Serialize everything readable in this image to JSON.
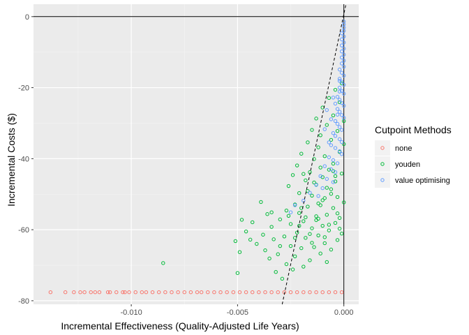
{
  "chart_data": {
    "type": "scatter",
    "xlabel": "Incremental Effectiveness (Quality-Adjusted Life Years)",
    "ylabel": "Incremental Costs ($)",
    "xlim": [
      -0.0146,
      0.0007
    ],
    "ylim": [
      -81.0,
      3.5
    ],
    "x_ticks": [
      -0.01,
      -0.005,
      0.0
    ],
    "x_tick_labels": [
      "-0.010",
      "-0.005",
      "0.000"
    ],
    "y_ticks": [
      0,
      -20,
      -40,
      -60,
      -80
    ],
    "y_tick_labels": [
      "0",
      "-20",
      "-40",
      "-60",
      "-80"
    ],
    "grid": true,
    "background": "#ebebeb",
    "reference_lines": {
      "x": 0,
      "y": 0
    },
    "threshold_line": {
      "style": "dashed",
      "points": [
        [
          -0.0029,
          -81.0
        ],
        [
          0.0001,
          3.5
        ]
      ]
    },
    "legend": {
      "title": "Cutpoint Methods",
      "placement": "right",
      "items": [
        "none",
        "youden",
        "value optimising"
      ]
    },
    "series": [
      {
        "name": "none",
        "color": "#f8766d",
        "points": [
          [
            -0.0138,
            -77.6
          ],
          [
            -0.0131,
            -77.6
          ],
          [
            -0.0127,
            -77.6
          ],
          [
            -0.0124,
            -77.6
          ],
          [
            -0.0122,
            -77.6
          ],
          [
            -0.0119,
            -77.6
          ],
          [
            -0.0117,
            -77.6
          ],
          [
            -0.0115,
            -77.6
          ],
          [
            -0.0111,
            -77.6
          ],
          [
            -0.011,
            -77.6
          ],
          [
            -0.0107,
            -77.6
          ],
          [
            -0.0104,
            -77.6
          ],
          [
            -0.0103,
            -77.6
          ],
          [
            -0.0101,
            -77.6
          ],
          [
            -0.0098,
            -77.6
          ],
          [
            -0.0095,
            -77.6
          ],
          [
            -0.0093,
            -77.6
          ],
          [
            -0.009,
            -77.6
          ],
          [
            -0.0087,
            -77.6
          ],
          [
            -0.0084,
            -77.6
          ],
          [
            -0.0081,
            -77.6
          ],
          [
            -0.0078,
            -77.6
          ],
          [
            -0.0075,
            -77.6
          ],
          [
            -0.0072,
            -77.6
          ],
          [
            -0.0069,
            -77.6
          ],
          [
            -0.0067,
            -77.6
          ],
          [
            -0.0064,
            -77.6
          ],
          [
            -0.0061,
            -77.6
          ],
          [
            -0.0058,
            -77.6
          ],
          [
            -0.0055,
            -77.6
          ],
          [
            -0.0052,
            -77.6
          ],
          [
            -0.0049,
            -77.6
          ],
          [
            -0.0046,
            -77.6
          ],
          [
            -0.0043,
            -77.6
          ],
          [
            -0.004,
            -77.6
          ],
          [
            -0.0037,
            -77.6
          ],
          [
            -0.0034,
            -77.6
          ],
          [
            -0.0031,
            -77.6
          ],
          [
            -0.0028,
            -77.6
          ],
          [
            -0.0025,
            -77.6
          ],
          [
            -0.0022,
            -77.6
          ],
          [
            -0.0019,
            -77.6
          ],
          [
            -0.0016,
            -77.6
          ],
          [
            -0.0013,
            -77.6
          ],
          [
            -0.001,
            -77.6
          ],
          [
            -0.0007,
            -77.6
          ],
          [
            -0.0004,
            -77.6
          ],
          [
            -0.0001,
            -77.6
          ]
        ]
      },
      {
        "name": "youden",
        "color": "#00ba38",
        "points": [
          [
            -0.0085,
            -69.4
          ],
          [
            -0.005,
            -72.2
          ],
          [
            -0.0049,
            -66.3
          ],
          [
            -0.0051,
            -63.2
          ],
          [
            -0.0046,
            -60.5
          ],
          [
            -0.0043,
            -57.9
          ],
          [
            -0.0041,
            -64.0
          ],
          [
            -0.0039,
            -52.2
          ],
          [
            -0.0038,
            -61.4
          ],
          [
            -0.0037,
            -65.8
          ],
          [
            -0.0036,
            -55.6
          ],
          [
            -0.0035,
            -68.1
          ],
          [
            -0.0034,
            -59.2
          ],
          [
            -0.0033,
            -62.7
          ],
          [
            -0.0032,
            -71.9
          ],
          [
            -0.0031,
            -66.9
          ],
          [
            -0.003,
            -57.1
          ],
          [
            -0.0029,
            -73.8
          ],
          [
            -0.0028,
            -61.9
          ],
          [
            -0.0027,
            -54.6
          ],
          [
            -0.0027,
            -69.7
          ],
          [
            -0.0026,
            -47.7
          ],
          [
            -0.0025,
            -64.6
          ],
          [
            -0.0025,
            -58.4
          ],
          [
            -0.0024,
            -44.6
          ],
          [
            -0.0024,
            -71.2
          ],
          [
            -0.0023,
            -52.9
          ],
          [
            -0.0023,
            -67.5
          ],
          [
            -0.0022,
            -41.9
          ],
          [
            -0.0022,
            -60.8
          ],
          [
            -0.0021,
            -55.3
          ],
          [
            -0.0021,
            -49.7
          ],
          [
            -0.002,
            -65.2
          ],
          [
            -0.002,
            -38.6
          ],
          [
            -0.0019,
            -70.4
          ],
          [
            -0.0019,
            -57.6
          ],
          [
            -0.0018,
            -46.1
          ],
          [
            -0.0018,
            -62.3
          ],
          [
            -0.0017,
            -35.4
          ],
          [
            -0.0017,
            -53.5
          ],
          [
            -0.0016,
            -68.6
          ],
          [
            -0.0016,
            -43.8
          ],
          [
            -0.0015,
            -59.6
          ],
          [
            -0.0015,
            -31.9
          ],
          [
            -0.0015,
            -50.4
          ],
          [
            -0.0014,
            -64.9
          ],
          [
            -0.0014,
            -40.1
          ],
          [
            -0.0013,
            -56.2
          ],
          [
            -0.0013,
            -28.7
          ],
          [
            -0.0013,
            -47.3
          ],
          [
            -0.0012,
            -61.6
          ],
          [
            -0.0012,
            -36.8
          ],
          [
            -0.0012,
            -52.6
          ],
          [
            -0.0011,
            -66.7
          ],
          [
            -0.0011,
            -42.5
          ],
          [
            -0.0011,
            -33.4
          ],
          [
            -0.001,
            -58.9
          ],
          [
            -0.001,
            -45.2
          ],
          [
            -0.001,
            -25.6
          ],
          [
            -0.0009,
            -63.8
          ],
          [
            -0.0009,
            -39.3
          ],
          [
            -0.0009,
            -51.1
          ],
          [
            -0.0008,
            -69.1
          ],
          [
            -0.0008,
            -30.5
          ],
          [
            -0.0008,
            -55.8
          ],
          [
            -0.0007,
            -43.1
          ],
          [
            -0.0007,
            -22.9
          ],
          [
            -0.0007,
            -60.2
          ],
          [
            -0.0006,
            -48.6
          ],
          [
            -0.0006,
            -34.7
          ],
          [
            -0.0006,
            -65.6
          ],
          [
            -0.0005,
            -27.8
          ],
          [
            -0.0005,
            -53.9
          ],
          [
            -0.0005,
            -41.4
          ],
          [
            -0.0004,
            -58.1
          ],
          [
            -0.0004,
            -20.6
          ],
          [
            -0.0004,
            -46.4
          ],
          [
            -0.0003,
            -62.9
          ],
          [
            -0.0003,
            -32.2
          ],
          [
            -0.0003,
            -50.8
          ],
          [
            -0.0002,
            -38.1
          ],
          [
            -0.0002,
            -56.7
          ],
          [
            -0.0002,
            -24.1
          ],
          [
            -0.0001,
            -44.2
          ],
          [
            -0.0001,
            -61.1
          ],
          [
            -0.0001,
            -18.8
          ],
          [
            0.0,
            -35.9
          ],
          [
            0.0,
            -52.3
          ],
          [
            0.0,
            -29.4
          ],
          [
            -0.0012,
            -56.9
          ],
          [
            -0.0008,
            -48.2
          ],
          [
            -0.0016,
            -61.2
          ],
          [
            -0.0005,
            -43.5
          ],
          [
            -0.0011,
            -53.1
          ],
          [
            -0.0007,
            -58.6
          ],
          [
            -0.0014,
            -46.7
          ],
          [
            -0.0003,
            -55.4
          ],
          [
            -0.0009,
            -62.1
          ],
          [
            -0.0006,
            -49.9
          ],
          [
            -0.0013,
            -57.3
          ],
          [
            -0.0004,
            -44.9
          ],
          [
            -0.001,
            -51.7
          ],
          [
            -0.0002,
            -59.7
          ],
          [
            -0.0017,
            -49.1
          ],
          [
            -0.0018,
            -56.5
          ],
          [
            -0.0015,
            -63.7
          ],
          [
            -0.0019,
            -44.3
          ],
          [
            -0.002,
            -53.9
          ],
          [
            -0.0021,
            -58.9
          ],
          [
            -0.0023,
            -62.3
          ],
          [
            -0.0026,
            -56.1
          ],
          [
            -0.003,
            -64.6
          ],
          [
            -0.0034,
            -55.1
          ],
          [
            -0.0044,
            -62.8
          ],
          [
            -0.0048,
            -57.2
          ]
        ]
      },
      {
        "name": "value optimising",
        "color": "#619cff",
        "points": [
          [
            0.0,
            -1.4
          ],
          [
            0.0,
            -2.2
          ],
          [
            0.0,
            -3.1
          ],
          [
            0.0,
            -4.0
          ],
          [
            -0.0001,
            -4.7
          ],
          [
            0.0,
            -5.6
          ],
          [
            -0.0001,
            -6.4
          ],
          [
            0.0,
            -7.3
          ],
          [
            -0.0001,
            -8.1
          ],
          [
            0.0,
            -9.0
          ],
          [
            -0.0001,
            -9.8
          ],
          [
            0.0,
            -10.7
          ],
          [
            -0.0001,
            -11.5
          ],
          [
            0.0,
            -12.4
          ],
          [
            -0.0001,
            -13.2
          ],
          [
            0.0,
            -14.1
          ],
          [
            -0.0002,
            -14.9
          ],
          [
            -0.0001,
            -15.8
          ],
          [
            0.0,
            -16.6
          ],
          [
            -0.0002,
            -17.5
          ],
          [
            -0.0001,
            -18.3
          ],
          [
            0.0,
            -19.2
          ],
          [
            -0.0002,
            -20.0
          ],
          [
            -0.0001,
            -20.9
          ],
          [
            0.0,
            -21.7
          ],
          [
            -0.0003,
            -22.6
          ],
          [
            -0.0002,
            -23.4
          ],
          [
            -0.0001,
            -24.3
          ],
          [
            0.0,
            -25.1
          ],
          [
            -0.0003,
            -26.0
          ],
          [
            -0.0002,
            -26.8
          ],
          [
            -0.0001,
            -27.7
          ],
          [
            0.0,
            -28.5
          ],
          [
            -0.0004,
            -29.4
          ],
          [
            -0.0003,
            -30.2
          ],
          [
            -0.0002,
            -31.1
          ],
          [
            -0.0001,
            -31.9
          ],
          [
            -0.0005,
            -32.8
          ],
          [
            -0.0004,
            -33.6
          ],
          [
            -0.0002,
            -34.5
          ],
          [
            -0.0001,
            -35.3
          ],
          [
            -0.0006,
            -36.2
          ],
          [
            -0.0004,
            -37.0
          ],
          [
            -0.0002,
            -37.9
          ],
          [
            -0.0001,
            -38.7
          ],
          [
            -0.0007,
            -39.6
          ],
          [
            -0.0005,
            -40.4
          ],
          [
            -0.0003,
            -41.3
          ],
          [
            -0.0009,
            -42.1
          ],
          [
            -0.0006,
            -43.0
          ],
          [
            -0.0004,
            -43.8
          ],
          [
            -0.0011,
            -44.9
          ],
          [
            -0.0008,
            -45.7
          ],
          [
            -0.0005,
            -46.6
          ],
          [
            -0.0013,
            -47.4
          ],
          [
            -0.001,
            -48.3
          ],
          [
            -0.0016,
            -49.6
          ],
          [
            -0.0012,
            -50.5
          ],
          [
            -0.0019,
            -51.8
          ],
          [
            -0.0023,
            -53.1
          ],
          [
            -0.0025,
            -55.1
          ],
          [
            -0.0007,
            -35.4
          ],
          [
            -0.0003,
            -27.6
          ],
          [
            -0.0009,
            -31.7
          ],
          [
            -0.0005,
            -22.8
          ],
          [
            -0.0002,
            -18.1
          ],
          [
            -0.0008,
            -26.3
          ],
          [
            -0.0006,
            -28.9
          ],
          [
            -0.0004,
            -24.5
          ],
          [
            -0.0002,
            -21.1
          ]
        ]
      }
    ]
  }
}
